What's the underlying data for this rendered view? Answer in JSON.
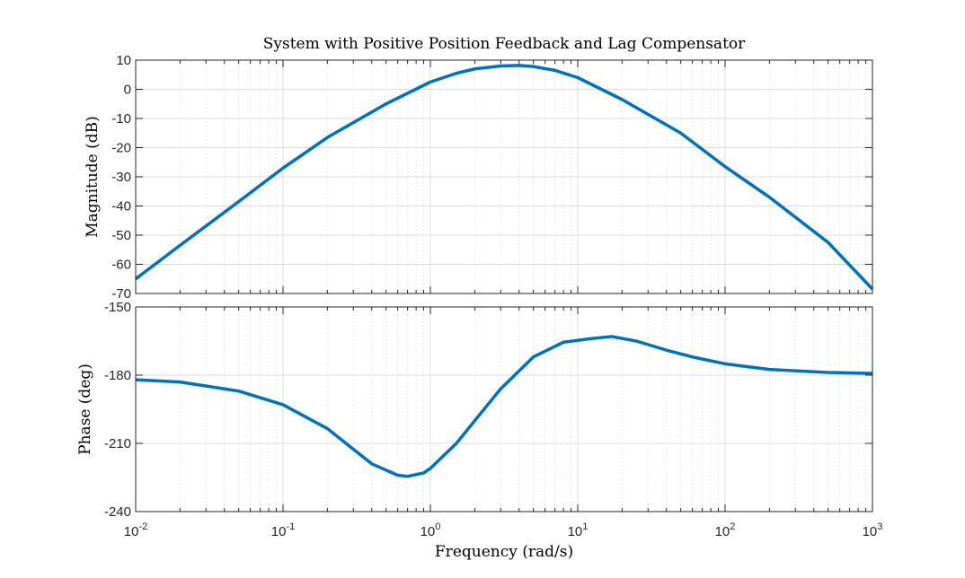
{
  "chart_data": {
    "type": "line",
    "title": "System with Positive Position Feedback and Lag Compensator",
    "xlabel": "Frequency (rad/s)",
    "x_scale": "log",
    "xlim": [
      0.01,
      1000
    ],
    "x_ticks": [
      {
        "base": "10",
        "exp": "-2"
      },
      {
        "base": "10",
        "exp": "-1"
      },
      {
        "base": "10",
        "exp": "0"
      },
      {
        "base": "10",
        "exp": "1"
      },
      {
        "base": "10",
        "exp": "2"
      },
      {
        "base": "10",
        "exp": "3"
      }
    ],
    "grid": true,
    "color": "#0072BD",
    "panels": [
      {
        "ylabel": "Magnitude (dB)",
        "ylim": [
          -70,
          10
        ],
        "yticks": [
          "10",
          "0",
          "-10",
          "-20",
          "-30",
          "-40",
          "-50",
          "-60",
          "-70"
        ],
        "series": [
          {
            "x": [
              0.01,
              0.02,
              0.05,
              0.1,
              0.2,
              0.5,
              1,
              1.5,
              2,
              3,
              4,
              5,
              7,
              10,
              20,
              50,
              100,
              200,
              500,
              1000
            ],
            "y": [
              -65,
              -53.5,
              -38.5,
              -27,
              -16.5,
              -5,
              2.5,
              5.5,
              7,
              8,
              8.2,
              7.8,
              6.5,
              4,
              -3.5,
              -15,
              -26.5,
              -37,
              -52.5,
              -68.5
            ]
          }
        ]
      },
      {
        "ylabel": "Phase (deg)",
        "ylim": [
          -240,
          -150
        ],
        "yticks": [
          "-150",
          "-180",
          "-210",
          "-240"
        ],
        "series": [
          {
            "x": [
              0.01,
              0.02,
              0.05,
              0.1,
              0.2,
              0.4,
              0.6,
              0.7,
              0.9,
              1,
              1.5,
              2,
              3,
              5,
              8,
              12,
              17,
              25,
              40,
              60,
              100,
              200,
              500,
              1000
            ],
            "y": [
              -182,
              -183,
              -187,
              -193,
              -203.5,
              -219,
              -224,
              -224.5,
              -223,
              -221,
              -210,
              -200,
              -186,
              -172,
              -165.5,
              -164,
              -163,
              -165,
              -169,
              -172,
              -175,
              -177.5,
              -178.8,
              -179.2
            ]
          }
        ]
      }
    ]
  }
}
